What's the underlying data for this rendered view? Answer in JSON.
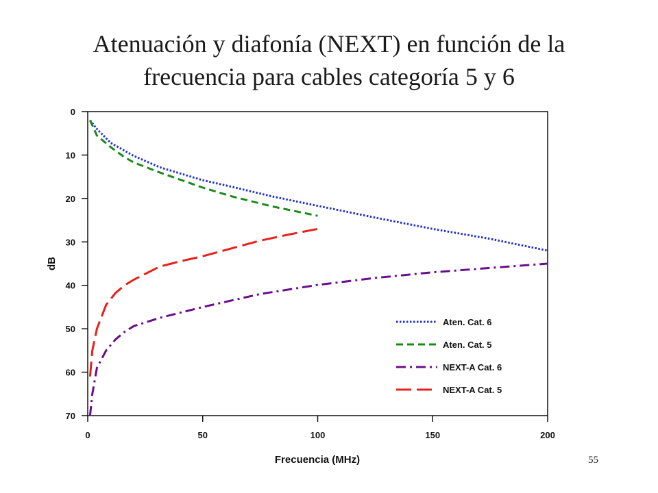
{
  "title_line1": "Atenuación y diafonía (NEXT) en función de la",
  "title_line2": "frecuencia para cables categoría 5 y 6",
  "page_number": "55",
  "chart_data": {
    "type": "line",
    "title": "Atenuación y diafonía (NEXT) en función de la frecuencia para cables categoría 5 y 6",
    "xlabel": "Frecuencia (MHz)",
    "ylabel": "dB",
    "xlim": [
      0,
      200
    ],
    "ylim": [
      0,
      70
    ],
    "y_inverted": true,
    "x_ticks": [
      0,
      50,
      100,
      150,
      200
    ],
    "y_ticks": [
      0,
      10,
      20,
      30,
      40,
      50,
      60,
      70
    ],
    "grid": false,
    "legend_position": "bottom-right",
    "series": [
      {
        "name": "Aten. Cat. 6",
        "color": "#1f2fd0",
        "style": "dotted",
        "points": [
          [
            1,
            2
          ],
          [
            4,
            4
          ],
          [
            10,
            7.2
          ],
          [
            16,
            9
          ],
          [
            20,
            10.2
          ],
          [
            31.25,
            12.8
          ],
          [
            50,
            15.8
          ],
          [
            62.5,
            17.3
          ],
          [
            80,
            19.5
          ],
          [
            100,
            21.7
          ],
          [
            125,
            24.4
          ],
          [
            150,
            27
          ],
          [
            175,
            29.3
          ],
          [
            200,
            32
          ]
        ]
      },
      {
        "name": "Aten. Cat. 5",
        "color": "#1a8a1a",
        "style": "dashed",
        "points": [
          [
            1,
            2
          ],
          [
            4,
            5.5
          ],
          [
            10,
            8.2
          ],
          [
            16,
            10.5
          ],
          [
            20,
            11.7
          ],
          [
            31.25,
            14
          ],
          [
            50,
            17.5
          ],
          [
            62.5,
            19.5
          ],
          [
            80,
            21.8
          ],
          [
            100,
            24
          ]
        ]
      },
      {
        "name": "NEXT-A Cat. 6",
        "color": "#6a0d8c",
        "style": "dash-dot",
        "points": [
          [
            1,
            70
          ],
          [
            2,
            65
          ],
          [
            4,
            59
          ],
          [
            8,
            55
          ],
          [
            12,
            52.5
          ],
          [
            16,
            50.7
          ],
          [
            20,
            49.4
          ],
          [
            31.25,
            47.5
          ],
          [
            50,
            45
          ],
          [
            62.5,
            43.5
          ],
          [
            75,
            42
          ],
          [
            100,
            39.9
          ],
          [
            125,
            38.3
          ],
          [
            150,
            37
          ],
          [
            175,
            36
          ],
          [
            200,
            35
          ]
        ]
      },
      {
        "name": "NEXT-A Cat. 5",
        "color": "#e8201b",
        "style": "long-dash",
        "points": [
          [
            1,
            61
          ],
          [
            2,
            55
          ],
          [
            4,
            50
          ],
          [
            8,
            44.5
          ],
          [
            12,
            41.8
          ],
          [
            16,
            40
          ],
          [
            20,
            38.7
          ],
          [
            31.25,
            35.7
          ],
          [
            40,
            34.5
          ],
          [
            50,
            33.3
          ],
          [
            62.5,
            31.5
          ],
          [
            75,
            29.7
          ],
          [
            87.5,
            28.3
          ],
          [
            100,
            27
          ]
        ]
      }
    ]
  }
}
